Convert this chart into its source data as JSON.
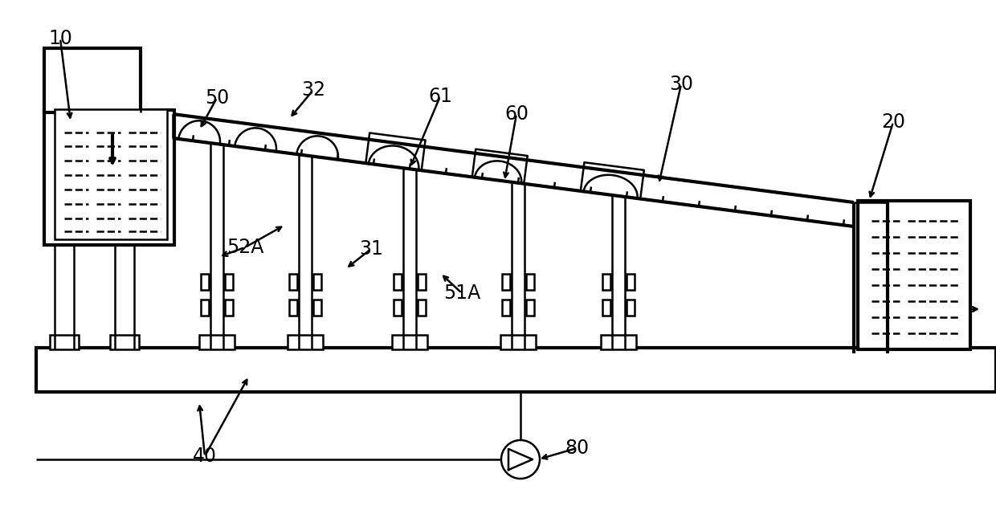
{
  "bg": "#ffffff",
  "lc": "#000000",
  "lw": 1.8,
  "lw2": 3.0,
  "fs": 17
}
